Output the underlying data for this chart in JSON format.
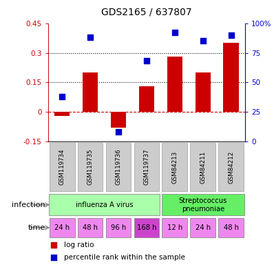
{
  "title": "GDS2165 / 637807",
  "samples": [
    "GSM119734",
    "GSM119735",
    "GSM119736",
    "GSM119737",
    "GSM84213",
    "GSM84211",
    "GSM84212"
  ],
  "log_ratio": [
    -0.02,
    0.2,
    -0.08,
    0.13,
    0.28,
    0.2,
    0.35
  ],
  "percentile_rank": [
    38,
    88,
    8,
    68,
    92,
    85,
    90
  ],
  "ylim_left": [
    -0.15,
    0.45
  ],
  "ylim_right": [
    0,
    100
  ],
  "yticks_left": [
    -0.15,
    0,
    0.15,
    0.3,
    0.45
  ],
  "yticks_right": [
    0,
    25,
    50,
    75,
    100
  ],
  "ytick_labels_left": [
    "-0.15",
    "0",
    "0.15",
    "0.3",
    "0.45"
  ],
  "ytick_labels_right": [
    "0",
    "25",
    "50",
    "75",
    "100%"
  ],
  "hlines": [
    0.15,
    0.3
  ],
  "bar_color": "#cc0000",
  "dot_color": "#0000cc",
  "zero_line_color": "#cc0000",
  "infection_groups": [
    {
      "label": "influenza A virus",
      "start": 0,
      "end": 4,
      "color": "#aaffaa"
    },
    {
      "label": "Streptococcus\npneumoniae",
      "start": 4,
      "end": 7,
      "color": "#66ee66"
    }
  ],
  "time_labels": [
    "24 h",
    "48 h",
    "96 h",
    "168 h",
    "12 h",
    "24 h",
    "48 h"
  ],
  "time_colors": [
    "#ee88ee",
    "#ee88ee",
    "#ee88ee",
    "#cc44cc",
    "#ee88ee",
    "#ee88ee",
    "#ee88ee"
  ],
  "infection_label": "infection",
  "time_label": "time",
  "legend_bar_label": "log ratio",
  "legend_dot_label": "percentile rank within the sample",
  "sample_box_color": "#cccccc",
  "sample_box_border": "#aaaaaa",
  "plot_bg": "#ffffff"
}
